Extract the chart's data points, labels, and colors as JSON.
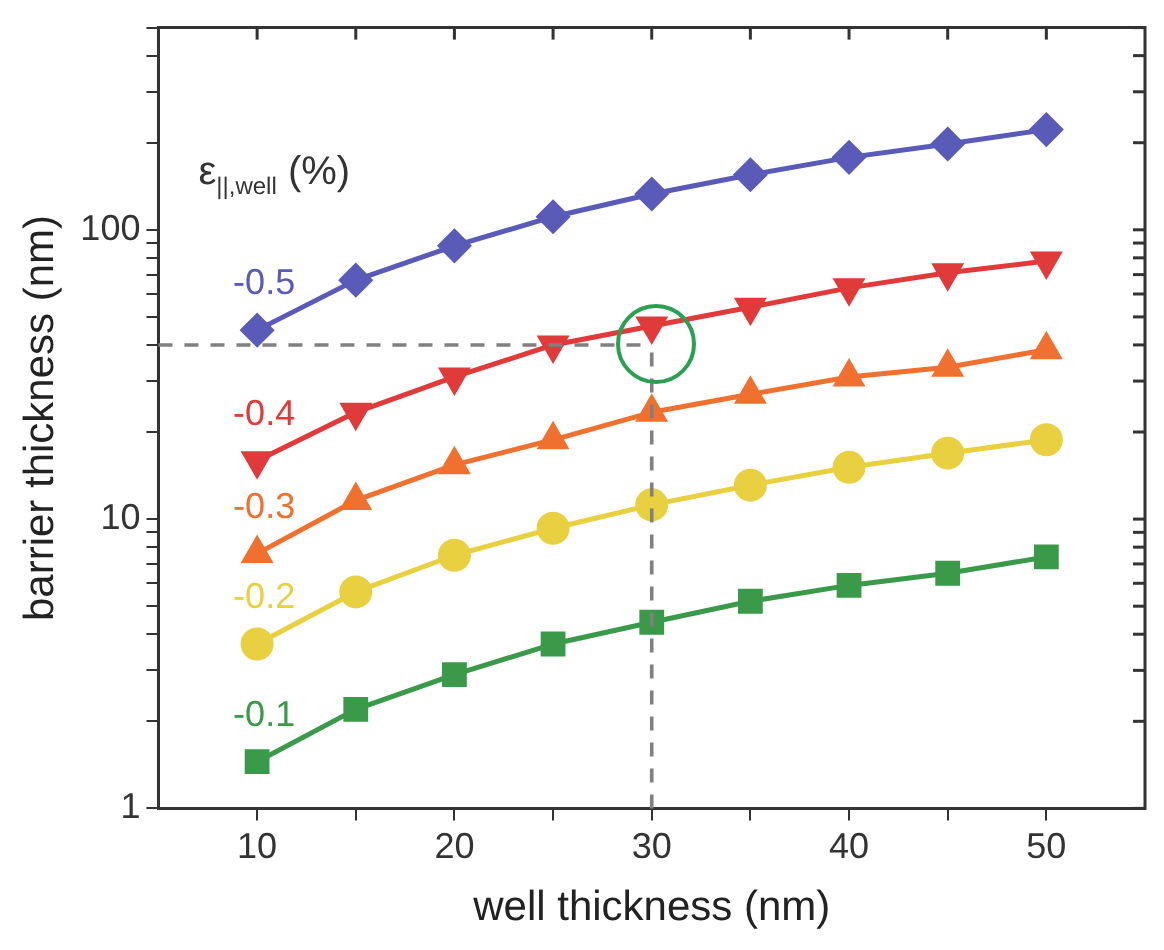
{
  "chart_data": {
    "type": "line",
    "xlabel": "well thickness (nm)",
    "ylabel": "barrier thickness (nm)",
    "legend_title": "ε$_{||,well}$ (%)",
    "x": [
      10,
      15,
      20,
      25,
      30,
      35,
      40,
      45,
      50
    ],
    "series": [
      {
        "name": "-0.5",
        "color": "#5a5ab8",
        "marker": "diamond",
        "values": [
          45,
          67,
          88,
          111,
          133,
          155,
          178,
          198,
          222
        ]
      },
      {
        "name": "-0.4",
        "color": "#e03a3a",
        "marker": "triangle-down",
        "values": [
          15.9,
          23.4,
          31,
          40,
          46.5,
          54,
          63,
          71,
          78
        ]
      },
      {
        "name": "-0.3",
        "color": "#f07030",
        "marker": "triangle",
        "values": [
          7.6,
          11.6,
          15.4,
          18.8,
          23.4,
          27,
          31,
          33.5,
          38.5
        ]
      },
      {
        "name": "-0.2",
        "color": "#e8d040",
        "marker": "circle",
        "values": [
          3.7,
          5.6,
          7.5,
          9.3,
          11.2,
          13.1,
          15.1,
          16.9,
          18.8
        ]
      },
      {
        "name": "-0.1",
        "color": "#3a9a4a",
        "marker": "square",
        "values": [
          1.45,
          2.2,
          2.9,
          3.7,
          4.4,
          5.2,
          5.9,
          6.5,
          7.4
        ]
      }
    ],
    "xlim": [
      5,
      55
    ],
    "xticks": [
      10,
      {
        "value": 15,
        "label": null
      },
      20,
      {
        "value": 25,
        "label": null
      },
      30,
      {
        "value": 35,
        "label": null
      },
      40,
      {
        "value": 45,
        "label": null
      },
      50
    ],
    "ylim": [
      1,
      500
    ],
    "log": true,
    "yticks": [
      1,
      {
        "value": 2,
        "label": null
      },
      {
        "value": 3,
        "label": null
      },
      {
        "value": 4,
        "label": null
      },
      {
        "value": 5,
        "label": null
      },
      {
        "value": 6,
        "label": null
      },
      {
        "value": 7,
        "label": null
      },
      {
        "value": 8,
        "label": null
      },
      {
        "value": 9,
        "label": null
      },
      10,
      {
        "value": 20,
        "label": null
      },
      {
        "value": 30,
        "label": null
      },
      {
        "value": 40,
        "label": null
      },
      {
        "value": 50,
        "label": null
      },
      {
        "value": 60,
        "label": null
      },
      {
        "value": 70,
        "label": null
      },
      {
        "value": 80,
        "label": null
      },
      {
        "value": 90,
        "label": null
      },
      100,
      {
        "value": 200,
        "label": null
      },
      {
        "value": 300,
        "label": null
      },
      {
        "value": 400,
        "label": null
      },
      {
        "value": 500,
        "label": null
      }
    ],
    "ref_lines": [
      {
        "axis": "y",
        "value": 40,
        "color": "#808080",
        "line_style": "dashed"
      },
      {
        "axis": "x",
        "value": 30,
        "color": "#808080",
        "line_style": "dashed"
      }
    ],
    "grid": false,
    "legend": false
  }
}
